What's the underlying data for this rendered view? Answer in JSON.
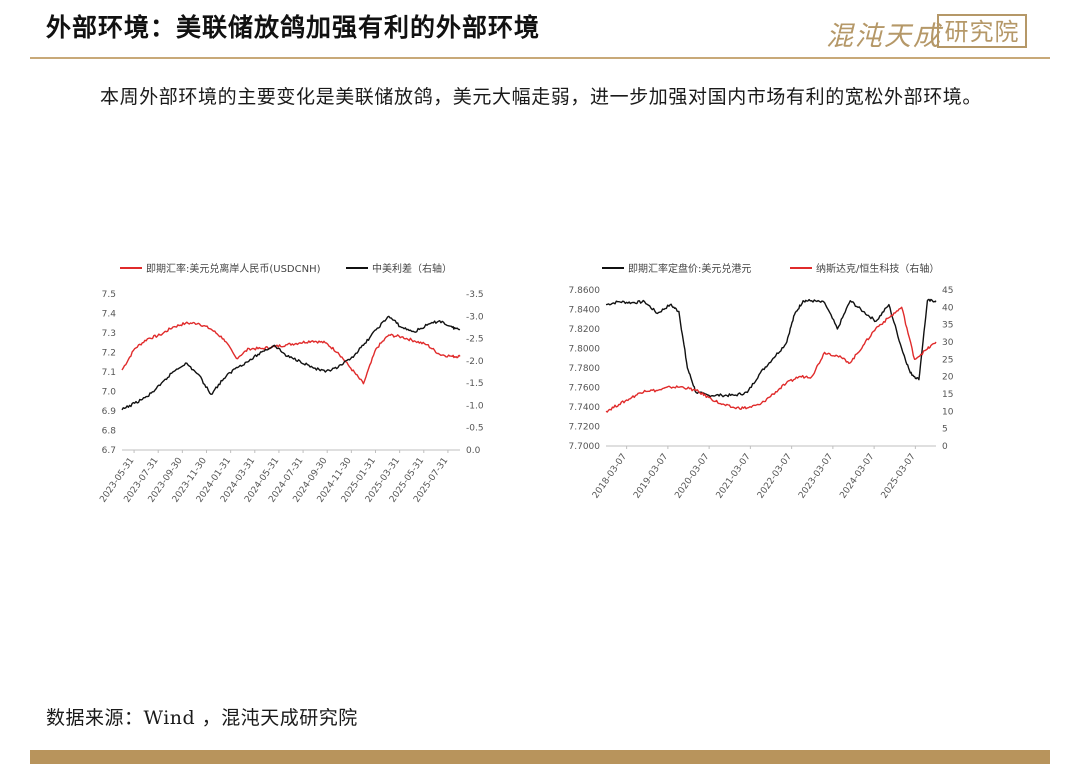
{
  "header": {
    "title": "外部环境：美联储放鸽加强有利的外部环境",
    "logo_script": "混沌天成",
    "logo_box": "研究院"
  },
  "intro_text": "本周外部环境的主要变化是美联储放鸽，美元大幅走弱，进一步加强对国内市场有利的宽松外部环境。",
  "source_text": "数据来源：Wind ，混沌天成研究院",
  "colors": {
    "red": "#e02b2b",
    "black": "#111111",
    "gold": "#b59868",
    "axis": "#bfbfbf"
  },
  "chart_data": [
    {
      "type": "line",
      "legend": [
        "即期汇率:美元兑离岸人民币(USDCNH)",
        "中美利差（右轴）"
      ],
      "x_ticks": [
        "2023-05-31",
        "2023-07-31",
        "2023-09-30",
        "2023-11-30",
        "2024-01-31",
        "2024-03-31",
        "2024-05-31",
        "2024-07-31",
        "2024-09-30",
        "2024-11-30",
        "2025-01-31",
        "2025-03-31",
        "2025-05-31",
        "2025-07-31"
      ],
      "y_left": {
        "ticks": [
          "7.5",
          "7.4",
          "7.3",
          "7.2",
          "7.1",
          "7.0",
          "6.9",
          "6.8",
          "6.7"
        ],
        "range": [
          6.7,
          7.5
        ]
      },
      "y_right": {
        "ticks": [
          "-3.5",
          "-3.0",
          "-2.5",
          "-2.0",
          "-1.5",
          "-1.0",
          "-0.5",
          "0.0"
        ],
        "range": [
          0.0,
          -3.5
        ],
        "inverted": true
      },
      "series": [
        {
          "name": "即期汇率:美元兑离岸人民币(USDCNH)",
          "axis": "left",
          "color": "#e02b2b",
          "x": [
            0,
            0.5,
            1,
            1.5,
            2,
            2.5,
            3,
            3.5,
            4,
            4.5,
            5,
            5.5,
            6,
            6.5,
            7,
            7.5,
            8,
            8.5,
            9,
            9.5,
            10,
            10.5,
            11,
            11.5,
            12,
            12.5,
            13,
            13.3
          ],
          "values": [
            7.11,
            7.22,
            7.27,
            7.29,
            7.33,
            7.35,
            7.35,
            7.32,
            7.27,
            7.17,
            7.22,
            7.22,
            7.23,
            7.24,
            7.25,
            7.26,
            7.25,
            7.2,
            7.12,
            7.04,
            7.22,
            7.29,
            7.28,
            7.26,
            7.24,
            7.19,
            7.18,
            7.18
          ]
        },
        {
          "name": "中美利差（右轴）",
          "axis": "right",
          "color": "#111111",
          "x": [
            0,
            0.5,
            1,
            1.5,
            2,
            2.5,
            3,
            3.5,
            4,
            4.5,
            5,
            5.5,
            6,
            6.5,
            7,
            7.5,
            8,
            8.5,
            9,
            9.5,
            10,
            10.5,
            11,
            11.5,
            12,
            12.5,
            13,
            13.3
          ],
          "values": [
            -0.9,
            -1.05,
            -1.2,
            -1.45,
            -1.75,
            -1.95,
            -1.7,
            -1.25,
            -1.6,
            -1.85,
            -2.0,
            -2.2,
            -2.35,
            -2.1,
            -2.0,
            -1.85,
            -1.75,
            -1.85,
            -2.05,
            -2.35,
            -2.7,
            -3.0,
            -2.75,
            -2.65,
            -2.8,
            -2.9,
            -2.75,
            -2.7
          ]
        }
      ]
    },
    {
      "type": "line",
      "legend": [
        "即期汇率定盘价:美元兑港元",
        "纳斯达克/恒生科技（右轴）"
      ],
      "x_ticks": [
        "2018-03-07",
        "2019-03-07",
        "2020-03-07",
        "2021-03-07",
        "2022-03-07",
        "2023-03-07",
        "2024-03-07",
        "2025-03-07"
      ],
      "y_left": {
        "ticks": [
          "7.8600",
          "7.8400",
          "7.8200",
          "7.8000",
          "7.7800",
          "7.7600",
          "7.7400",
          "7.7200",
          "7.7000"
        ],
        "range": [
          7.7,
          7.86
        ]
      },
      "y_right": {
        "ticks": [
          "45",
          "40",
          "35",
          "30",
          "25",
          "20",
          "15",
          "10",
          "5",
          "0"
        ],
        "range": [
          0,
          45
        ]
      },
      "series": [
        {
          "name": "即期汇率定盘价:美元兑港元",
          "axis": "left",
          "color": "#111111",
          "x": [
            0,
            0.3,
            0.6,
            0.9,
            1.2,
            1.5,
            1.7,
            1.9,
            2.1,
            2.4,
            2.7,
            3.0,
            3.3,
            3.6,
            3.9,
            4.2,
            4.4,
            4.6,
            4.8,
            5.1,
            5.4,
            5.7,
            6.0,
            6.3,
            6.6,
            6.9,
            7.1,
            7.3,
            7.5,
            7.7
          ],
          "values": [
            7.845,
            7.848,
            7.847,
            7.848,
            7.836,
            7.845,
            7.838,
            7.78,
            7.755,
            7.752,
            7.752,
            7.752,
            7.755,
            7.775,
            7.79,
            7.805,
            7.835,
            7.849,
            7.849,
            7.847,
            7.82,
            7.849,
            7.838,
            7.828,
            7.845,
            7.8,
            7.775,
            7.768,
            7.849,
            7.849
          ]
        },
        {
          "name": "纳斯达克/恒生科技（右轴）",
          "axis": "right",
          "color": "#e02b2b",
          "x": [
            0,
            0.3,
            0.6,
            0.9,
            1.2,
            1.5,
            1.8,
            2.1,
            2.4,
            2.7,
            3.0,
            3.3,
            3.6,
            3.9,
            4.2,
            4.5,
            4.8,
            5.1,
            5.4,
            5.7,
            6.0,
            6.3,
            6.6,
            6.9,
            7.2,
            7.5,
            7.7
          ],
          "values": [
            10,
            12,
            14,
            16,
            16,
            17,
            17,
            16,
            14,
            12,
            11,
            11,
            12,
            15,
            18,
            20,
            20,
            27,
            26,
            24,
            29,
            34,
            37,
            40,
            25,
            28,
            30
          ]
        }
      ]
    }
  ]
}
